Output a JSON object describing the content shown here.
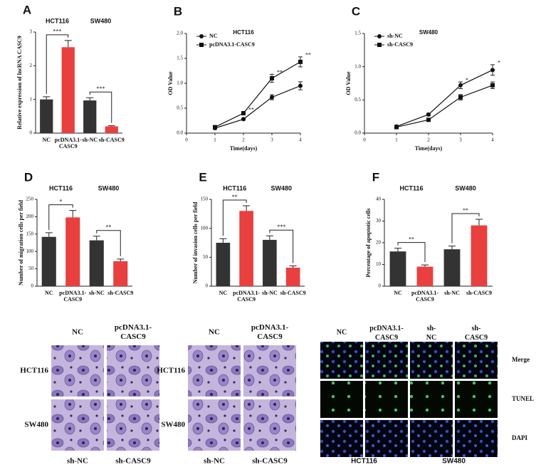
{
  "chart_data": [
    {
      "type": "bar",
      "label": "A",
      "groups": [
        "HCT116",
        "SW480"
      ],
      "ylabel": "Relative expression of lncRNA CASC9",
      "categories": [
        "NC",
        "pcDNA3.1-CASC9",
        "sh-NC",
        "sh-CASC9"
      ],
      "values": [
        1.0,
        2.55,
        0.97,
        0.2
      ],
      "errors": [
        0.08,
        0.2,
        0.08,
        0.02
      ],
      "colors": [
        "#333333",
        "#e8403f",
        "#333333",
        "#e8403f"
      ],
      "ylim": [
        0,
        3
      ],
      "yticks": [
        0,
        1,
        2,
        3
      ],
      "significance": [
        "***",
        "***"
      ]
    },
    {
      "type": "line",
      "label": "B",
      "title": "HCT116",
      "xlabel": "Time(days)",
      "ylabel": "OD Value",
      "x": [
        1,
        2,
        3,
        4
      ],
      "xlim": [
        0,
        4
      ],
      "xticks": [
        0,
        1,
        2,
        3,
        4
      ],
      "ylim": [
        0,
        2.0
      ],
      "yticks": [
        {
          "value": 0,
          "label": "0.0"
        },
        {
          "value": 0.5,
          "label": "0.5"
        },
        {
          "value": 1,
          "label": "1.0"
        },
        {
          "value": 1.5,
          "label": "1.5"
        },
        {
          "value": 2,
          "label": "2.0"
        }
      ],
      "series": [
        {
          "name": "NC",
          "color": "#111111",
          "values": [
            0.1,
            0.28,
            0.72,
            0.95
          ],
          "errors": [
            0.02,
            0.02,
            0.05,
            0.08
          ]
        },
        {
          "name": "pcDNA3.1-CASC9",
          "color": "#111111",
          "values": [
            0.12,
            0.4,
            1.1,
            1.43
          ],
          "errors": [
            0.02,
            0.03,
            0.08,
            0.1
          ]
        }
      ],
      "significance": [
        "**",
        "**",
        "**"
      ]
    },
    {
      "type": "line",
      "label": "C",
      "title": "SW480",
      "xlabel": "Time(days)",
      "ylabel": "OD Value",
      "x": [
        1,
        2,
        3,
        4
      ],
      "xlim": [
        0,
        4
      ],
      "xticks": [
        0,
        1,
        2,
        3,
        4
      ],
      "ylim": [
        0,
        1.5
      ],
      "yticks": [
        {
          "value": 0,
          "label": "0.0"
        },
        {
          "value": 0.5,
          "label": "0.5"
        },
        {
          "value": 1,
          "label": "1.0"
        },
        {
          "value": 1.5,
          "label": "1.5"
        }
      ],
      "series": [
        {
          "name": "sh-NC",
          "color": "#111111",
          "values": [
            0.1,
            0.28,
            0.72,
            0.95
          ],
          "errors": [
            0.01,
            0.02,
            0.05,
            0.08
          ]
        },
        {
          "name": "sh-CASC9",
          "color": "#111111",
          "values": [
            0.09,
            0.2,
            0.54,
            0.72
          ],
          "errors": [
            0.01,
            0.02,
            0.04,
            0.05
          ]
        }
      ],
      "significance": [
        "*",
        "*"
      ]
    },
    {
      "type": "bar",
      "label": "D",
      "groups": [
        "HCT116",
        "SW480"
      ],
      "ylabel": "Number of migration cells per field",
      "categories": [
        "NC",
        "pcDNA3.1-CASC9",
        "sh-NC",
        "sh-CASC9"
      ],
      "values": [
        142,
        198,
        132,
        72
      ],
      "errors": [
        12,
        20,
        12,
        6
      ],
      "colors": [
        "#333333",
        "#e8403f",
        "#333333",
        "#e8403f"
      ],
      "ylim": [
        0,
        250
      ],
      "yticks": [
        0,
        50,
        100,
        150,
        200,
        250
      ],
      "significance": [
        "*",
        "**"
      ]
    },
    {
      "type": "bar",
      "label": "E",
      "groups": [
        "HCT116",
        "SW480"
      ],
      "ylabel": "Number of invasion cells per field",
      "categories": [
        "NC",
        "pcDNA3.1-CASC9",
        "sh-NC",
        "sh-CASC9"
      ],
      "values": [
        75,
        130,
        80,
        32
      ],
      "errors": [
        7,
        9,
        7,
        3
      ],
      "colors": [
        "#333333",
        "#e8403f",
        "#333333",
        "#e8403f"
      ],
      "ylim": [
        0,
        150
      ],
      "yticks": [
        0,
        50,
        100,
        150
      ],
      "significance": [
        "**",
        "***"
      ]
    },
    {
      "type": "bar",
      "label": "F",
      "groups": [
        "HCT116",
        "SW480"
      ],
      "ylabel": "Percentage of apoptotic cells",
      "categories": [
        "NC",
        "pcDNA3.1-CASC9",
        "sh-NC",
        "sh-CASC9"
      ],
      "values": [
        16,
        9,
        17,
        28
      ],
      "errors": [
        1.5,
        0.8,
        1.5,
        2.8
      ],
      "colors": [
        "#333333",
        "#e8403f",
        "#333333",
        "#e8403f"
      ],
      "ylim": [
        0,
        40
      ],
      "yticks": [
        0,
        10,
        20,
        30,
        40
      ],
      "significance": [
        "**",
        "**"
      ]
    }
  ],
  "migration": {
    "columns": [
      "NC",
      "pcDNA3.1-CASC9"
    ],
    "rows": [
      "HCT116",
      "SW480"
    ],
    "bottom": [
      "sh-NC",
      "sh-CASC9"
    ]
  },
  "invasion": {
    "columns": [
      "NC",
      "pcDNA3.1-CASC9"
    ],
    "rows": [
      "HCT116",
      "SW480"
    ],
    "bottom": [
      "sh-NC",
      "sh-CASC9"
    ]
  },
  "tunel": {
    "columns": [
      "NC",
      "pcDNA3.1-CASC9",
      "sh-NC",
      "sh-CASC9"
    ],
    "rows": [
      "Merge",
      "TUNEL",
      "DAPI"
    ],
    "groups": [
      "HCT116",
      "SW480"
    ]
  }
}
